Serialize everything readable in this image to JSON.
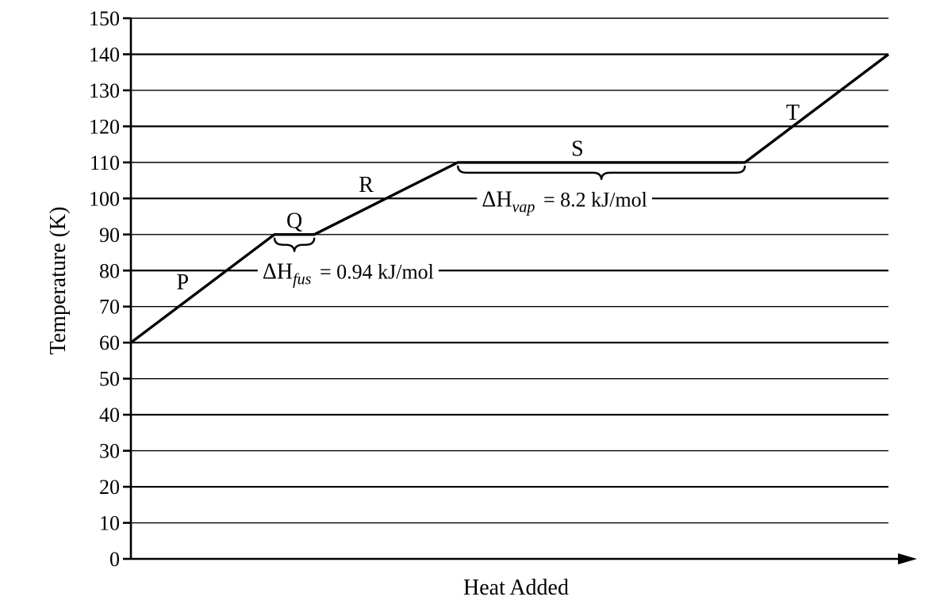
{
  "chart_data": {
    "type": "line",
    "title": "",
    "xlabel": "Heat Added",
    "ylabel": "Temperature (K)",
    "ylim": [
      0,
      150
    ],
    "yticks": [
      0,
      10,
      20,
      30,
      40,
      50,
      60,
      70,
      80,
      90,
      100,
      110,
      120,
      130,
      140,
      150
    ],
    "x_ticks_shown": false,
    "grid": "horizontal",
    "series": [
      {
        "points": [
          {
            "x": 0.0,
            "y": 60
          },
          {
            "x": 1.8,
            "y": 90
          },
          {
            "x": 2.3,
            "y": 90
          },
          {
            "x": 4.1,
            "y": 110
          },
          {
            "x": 7.7,
            "y": 110
          },
          {
            "x": 9.5,
            "y": 140
          }
        ]
      }
    ],
    "segment_labels": [
      {
        "text": "P",
        "x": 0.65,
        "y": 77
      },
      {
        "text": "Q",
        "x": 2.05,
        "y": 94
      },
      {
        "text": "R",
        "x": 2.95,
        "y": 104
      },
      {
        "text": "S",
        "x": 5.6,
        "y": 114
      },
      {
        "text": "T",
        "x": 8.3,
        "y": 124
      }
    ],
    "annotations": [
      {
        "symbol": "ΔH",
        "subscript": "fus",
        "value": "= 0.94 kJ/mol",
        "brace_x": [
          1.8,
          2.3
        ],
        "brace_y": 90,
        "text_x": 1.65,
        "text_y": 80
      },
      {
        "symbol": "ΔH",
        "subscript": "vap",
        "value": "= 8.2 kJ/mol",
        "brace_x": [
          4.1,
          7.7
        ],
        "brace_y": 110,
        "text_x": 4.4,
        "text_y": 100
      }
    ]
  }
}
